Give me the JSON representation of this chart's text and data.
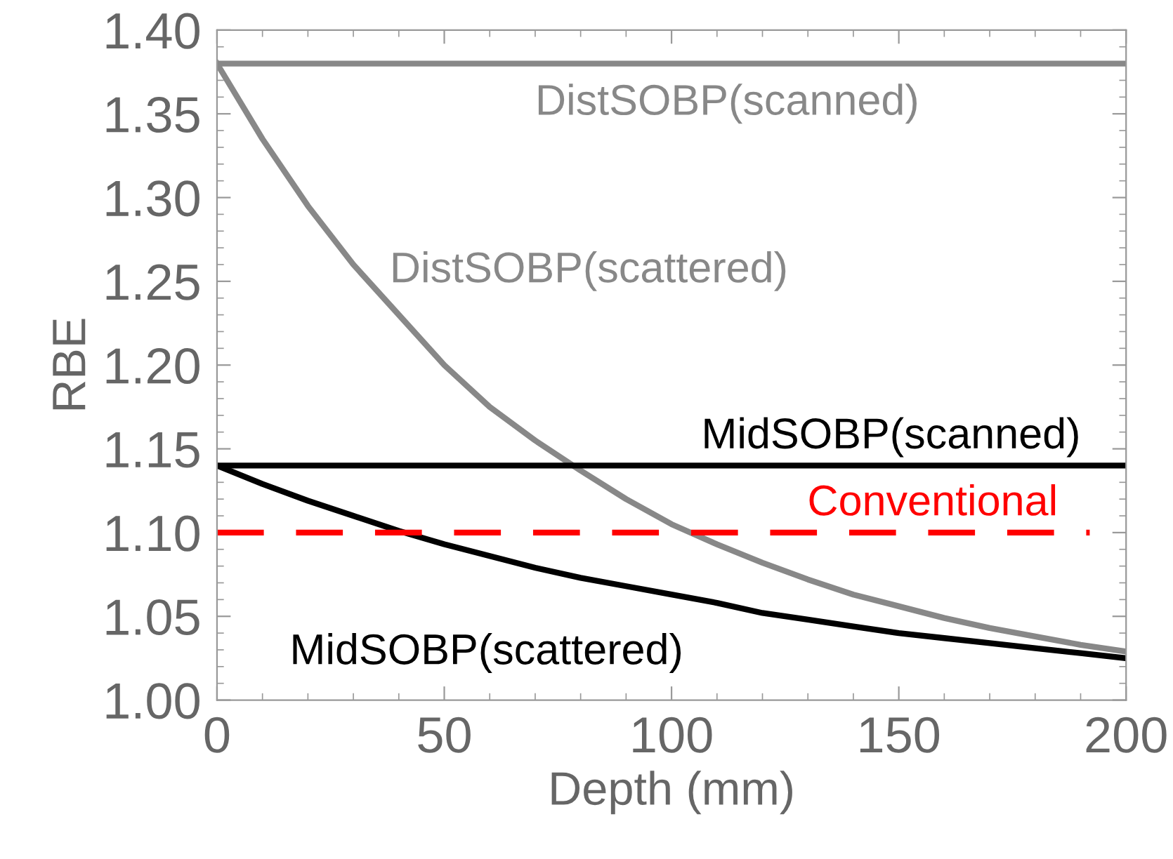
{
  "chart_data": {
    "type": "line",
    "xlabel": "Depth (mm)",
    "ylabel": "RBE",
    "x": [
      0,
      10,
      20,
      30,
      40,
      50,
      60,
      70,
      80,
      90,
      100,
      110,
      120,
      130,
      140,
      150,
      160,
      170,
      180,
      190,
      200
    ],
    "series": [
      {
        "name": "DistSOBP(scanned)",
        "color": "#888888",
        "values": [
          1.38,
          1.38,
          1.38,
          1.38,
          1.38,
          1.38,
          1.38,
          1.38,
          1.38,
          1.38,
          1.38,
          1.38,
          1.38,
          1.38,
          1.38,
          1.38,
          1.38,
          1.38,
          1.38,
          1.38,
          1.38
        ]
      },
      {
        "name": "DistSOBP(scattered)",
        "color": "#888888",
        "values": [
          1.38,
          1.335,
          1.295,
          1.26,
          1.23,
          1.2,
          1.175,
          1.155,
          1.137,
          1.12,
          1.105,
          1.093,
          1.082,
          1.072,
          1.063,
          1.056,
          1.049,
          1.043,
          1.038,
          1.033,
          1.029
        ]
      },
      {
        "name": "MidSOBP(scanned)",
        "color": "#000000",
        "values": [
          1.14,
          1.14,
          1.14,
          1.14,
          1.14,
          1.14,
          1.14,
          1.14,
          1.14,
          1.14,
          1.14,
          1.14,
          1.14,
          1.14,
          1.14,
          1.14,
          1.14,
          1.14,
          1.14,
          1.14,
          1.14
        ]
      },
      {
        "name": "MidSOBP(scattered)",
        "color": "#000000",
        "values": [
          1.14,
          1.129,
          1.119,
          1.11,
          1.101,
          1.093,
          1.086,
          1.079,
          1.073,
          1.068,
          1.063,
          1.058,
          1.052,
          1.048,
          1.044,
          1.04,
          1.037,
          1.034,
          1.031,
          1.028,
          1.025
        ]
      }
    ],
    "ref_lines": [
      {
        "axis": "y",
        "value": 1.1,
        "label": "Conventional",
        "color": "#ff0000",
        "line_style": "dashed"
      }
    ],
    "xlim": [
      0,
      200
    ],
    "ylim": [
      1.0,
      1.4
    ],
    "xticks": [
      0,
      50,
      100,
      150,
      200
    ],
    "yticks": [
      {
        "value": 1.0,
        "label": "1.00"
      },
      {
        "value": 1.05,
        "label": "1.05"
      },
      {
        "value": 1.1,
        "label": "1.10"
      },
      {
        "value": 1.15,
        "label": "1.15"
      },
      {
        "value": 1.2,
        "label": "1.20"
      },
      {
        "value": 1.25,
        "label": "1.25"
      },
      {
        "value": 1.3,
        "label": "1.30"
      },
      {
        "value": 1.35,
        "label": "1.35"
      },
      {
        "value": 1.4,
        "label": "1.40"
      }
    ],
    "grid": false,
    "legend": false,
    "marker": "none",
    "line_style": "solid"
  }
}
